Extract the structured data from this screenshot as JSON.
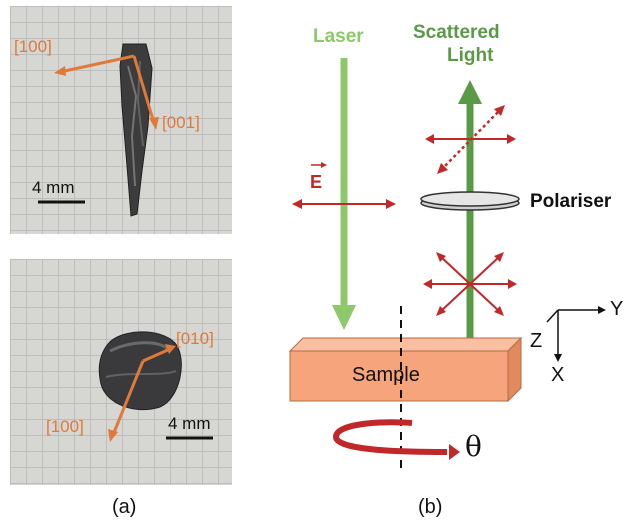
{
  "panel_a": {
    "top_photo": {
      "axis_left": "[100]",
      "axis_down": "[001]",
      "scale_bar": "4 mm"
    },
    "bottom_photo": {
      "axis_up": "[010]",
      "axis_down": "[100]",
      "scale_bar": "4 mm"
    },
    "caption": "(a)"
  },
  "panel_b": {
    "laser_label": "Laser",
    "field_label": "E",
    "scattered_label_line1": "Scattered",
    "scattered_label_line2": "Light",
    "polariser_label": "Polariser",
    "sample_label": "Sample",
    "rotation_label": "θ",
    "axes": {
      "y": "Y",
      "z": "Z",
      "x": "X"
    },
    "caption": "(b)"
  },
  "colors": {
    "laser_green": "#8dc86a",
    "scattered_green": "#5a9a46",
    "polarisation_red": "#c0282a",
    "sample_fill": "#f5a47c",
    "orange_axis": "#e07a3a"
  }
}
